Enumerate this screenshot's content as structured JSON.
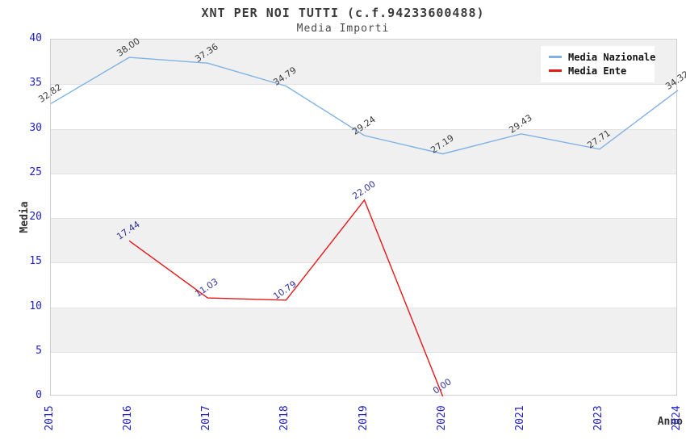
{
  "header": {
    "title": "XNT PER NOI TUTTI (c.f.94233600488)",
    "subtitle": "Media Importi"
  },
  "colors": {
    "tick_label": "#2222cc",
    "band_gray": "#f0f0f0",
    "nazionale_line": "#7fb2e6",
    "ente_line": "#e61717",
    "nazionale_data_label": "#3c3c3c",
    "ente_data_label": "#32329b"
  },
  "chart_data": {
    "type": "line",
    "title": "XNT PER NOI TUTTI (c.f.94233600488)",
    "subtitle": "Media Importi",
    "xlabel": "Anno",
    "ylabel": "Media",
    "categories": [
      "2015",
      "2016",
      "2017",
      "2018",
      "2019",
      "2020",
      "2021",
      "2023",
      "2024"
    ],
    "ylim": [
      0,
      40
    ],
    "ytick_step": 5,
    "yticks": [
      0,
      5,
      10,
      15,
      20,
      25,
      30,
      35,
      40
    ],
    "grid": "alternating-horizontal-bands",
    "legend_position": "top-right",
    "series": [
      {
        "name": "Media Nazionale",
        "color": "#7fb2e6",
        "label_color": "#3c3c3c",
        "values": [
          32.82,
          38.0,
          37.36,
          34.79,
          29.24,
          27.19,
          29.43,
          27.71,
          34.32
        ]
      },
      {
        "name": "Media Ente",
        "color": "#e61717",
        "label_color": "#32329b",
        "values": [
          null,
          17.44,
          11.03,
          10.79,
          22.0,
          0.0,
          null,
          null,
          null
        ]
      }
    ]
  }
}
